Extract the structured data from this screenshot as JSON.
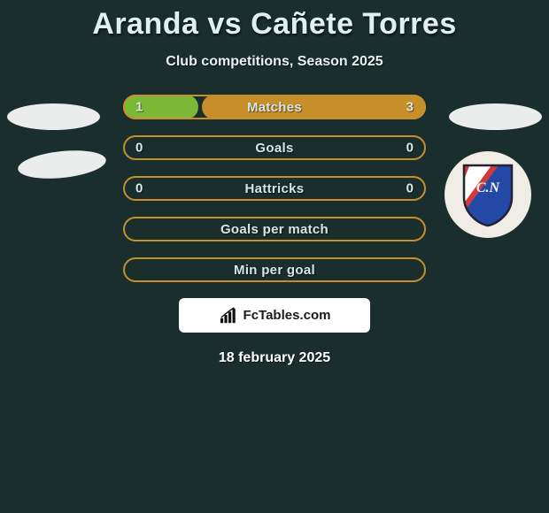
{
  "background_color": "#1a2e2e",
  "title": "Aranda vs Cañete Torres",
  "title_fontsize": 34,
  "title_color": "#dff0ee",
  "subtitle": "Club competitions, Season 2025",
  "subtitle_fontsize": 16,
  "left_fill_color": "#7cb838",
  "right_fill_color": "#c78f2a",
  "border_default_color": "#c78f2a",
  "rows": [
    {
      "label": "Matches",
      "left": "1",
      "right": "3",
      "left_pct": 25,
      "right_pct": 75,
      "has_fill": true
    },
    {
      "label": "Goals",
      "left": "0",
      "right": "0",
      "left_pct": 0,
      "right_pct": 0,
      "has_fill": false
    },
    {
      "label": "Hattricks",
      "left": "0",
      "right": "0",
      "left_pct": 0,
      "right_pct": 0,
      "has_fill": false
    },
    {
      "label": "Goals per match",
      "left": "",
      "right": "",
      "left_pct": 0,
      "right_pct": 0,
      "has_fill": false
    },
    {
      "label": "Min per goal",
      "left": "",
      "right": "",
      "left_pct": 0,
      "right_pct": 0,
      "has_fill": false
    }
  ],
  "attribution": {
    "site": "FcTables.com"
  },
  "date": "18 february 2025",
  "badge": {
    "stripe1_color": "#d33a3a",
    "stripe2_color": "#ffffff",
    "stripe3_color": "#2348a6",
    "text": "C.N",
    "text_color": "#ffffff"
  }
}
